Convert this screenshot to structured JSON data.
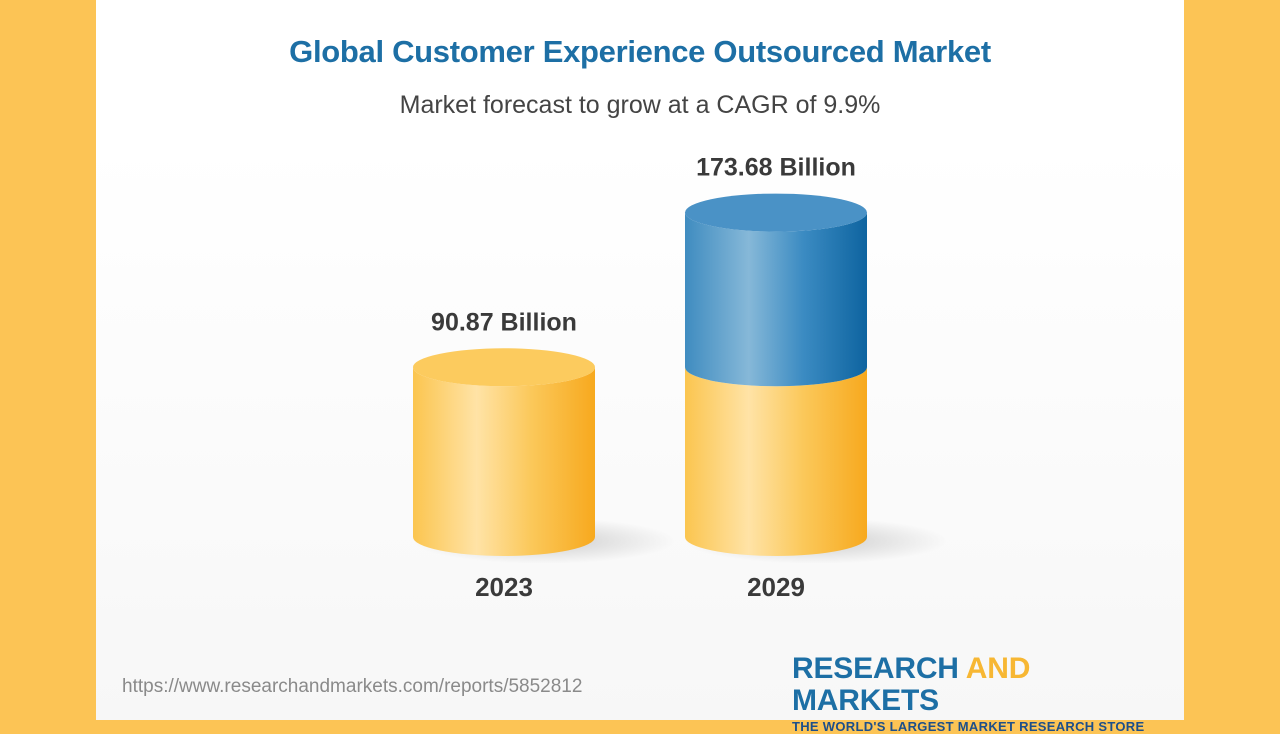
{
  "title": "Global Customer Experience Outsourced Market",
  "subtitle": "Market forecast to grow at a CAGR of 9.9%",
  "chart_data": {
    "type": "bar",
    "style": "3d-cylinder",
    "categories": [
      "2023",
      "2029"
    ],
    "values": [
      90.87,
      173.68
    ],
    "data_labels": [
      "90.87 Billion",
      "173.68 Billion"
    ],
    "title": "Global Customer Experience Outsourced Market",
    "subtitle": "Market forecast to grow at a CAGR of 9.9%",
    "grid": false,
    "legend": "none",
    "colors": {
      "base": "#FBC14A",
      "growth": "#2E86C1"
    }
  },
  "footer": {
    "source_url": "https://www.researchandmarkets.com/reports/5852812",
    "logo_part1": "RESEARCH ",
    "logo_part2": "AND",
    "logo_part3": " MARKETS",
    "logo_tagline": "THE WORLD'S LARGEST MARKET RESEARCH STORE"
  }
}
